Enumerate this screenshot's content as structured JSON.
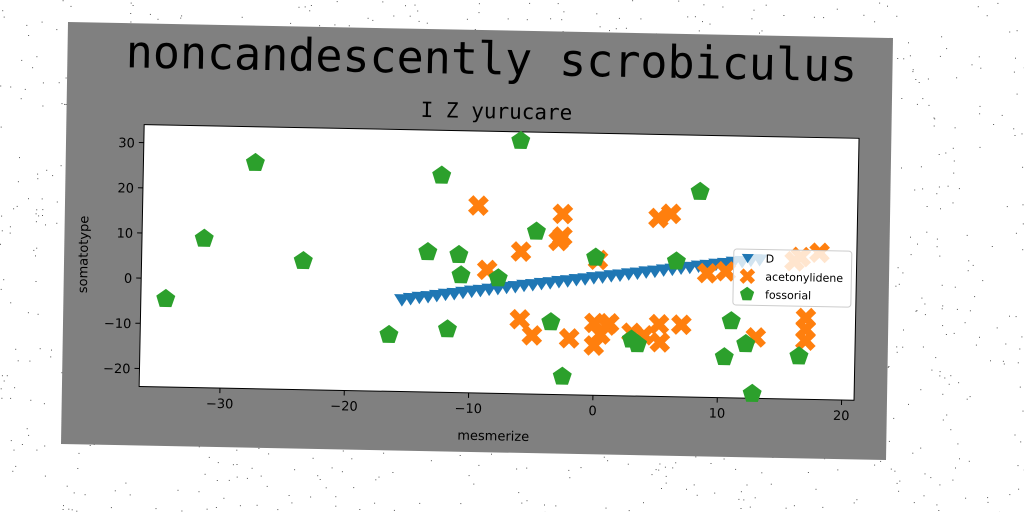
{
  "figure": {
    "title": "noncandescently scrobiculus",
    "subtitle": "I Z yurucare",
    "background_color": "#808080",
    "plot_background": "#ffffff"
  },
  "chart_data": {
    "type": "scatter",
    "title": "noncandescently scrobiculus",
    "subtitle": "I Z yurucare",
    "xlabel": "mesmerize",
    "ylabel": "somatotype",
    "xlim": [
      -36.5,
      21
    ],
    "ylim": [
      -24,
      34
    ],
    "xticks": [
      -30,
      -20,
      -10,
      0,
      10,
      20
    ],
    "yticks": [
      -20,
      -10,
      0,
      10,
      20,
      30
    ],
    "xtick_labels": [
      "−30",
      "−20",
      "−10",
      "0",
      "10",
      "20"
    ],
    "ytick_labels": [
      "−20",
      "−10",
      "0",
      "10",
      "20",
      "30"
    ],
    "grid": false,
    "legend_position": "center-right",
    "series": [
      {
        "name": "D",
        "marker": "triangle-down",
        "color": "#1f77b4",
        "points": [
          [
            -15.5,
            -3.7
          ],
          [
            -14.8,
            -3.4
          ],
          [
            -14.1,
            -3.1
          ],
          [
            -13.4,
            -2.9
          ],
          [
            -12.7,
            -2.6
          ],
          [
            -12.0,
            -2.3
          ],
          [
            -11.3,
            -2.1
          ],
          [
            -10.6,
            -1.8
          ],
          [
            -9.9,
            -1.5
          ],
          [
            -9.2,
            -1.3
          ],
          [
            -8.5,
            -1.0
          ],
          [
            -7.8,
            -0.8
          ],
          [
            -7.1,
            -0.5
          ],
          [
            -6.4,
            -0.3
          ],
          [
            -5.7,
            0.0
          ],
          [
            -5.0,
            0.2
          ],
          [
            -4.3,
            0.5
          ],
          [
            -3.6,
            0.7
          ],
          [
            -2.9,
            1.0
          ],
          [
            -2.2,
            1.2
          ],
          [
            -1.5,
            1.5
          ],
          [
            -0.8,
            1.7
          ],
          [
            -0.1,
            2.0
          ],
          [
            0.6,
            2.2
          ],
          [
            1.3,
            2.5
          ],
          [
            2.0,
            2.7
          ],
          [
            2.7,
            3.0
          ],
          [
            3.4,
            3.2
          ],
          [
            4.1,
            3.5
          ],
          [
            4.8,
            3.7
          ],
          [
            5.5,
            4.0
          ],
          [
            6.2,
            4.2
          ],
          [
            6.9,
            4.5
          ],
          [
            7.6,
            4.7
          ],
          [
            8.3,
            5.0
          ],
          [
            9.0,
            5.2
          ],
          [
            9.7,
            5.5
          ],
          [
            10.4,
            5.7
          ],
          [
            11.1,
            6.0
          ],
          [
            11.8,
            6.2
          ],
          [
            12.5,
            6.5
          ],
          [
            13.2,
            6.7
          ]
        ]
      },
      {
        "name": "acetonylidene",
        "marker": "x-filled",
        "color": "#ff7f0e",
        "points": [
          [
            -9.5,
            17.5
          ],
          [
            -8.7,
            3.3
          ],
          [
            -6.0,
            7.5
          ],
          [
            -6.0,
            -7.5
          ],
          [
            -5.0,
            -11.0
          ],
          [
            -3.0,
            10.0
          ],
          [
            -2.7,
            16.0
          ],
          [
            -2.7,
            11.0
          ],
          [
            -2.0,
            -11.5
          ],
          [
            0.0,
            -8.0
          ],
          [
            0.2,
            6.0
          ],
          [
            0.0,
            -13.0
          ],
          [
            0.5,
            -10.5
          ],
          [
            1.0,
            -8.5
          ],
          [
            1.2,
            -8.0
          ],
          [
            3.0,
            -10.0
          ],
          [
            4.0,
            -10.5
          ],
          [
            5.2,
            -8.0
          ],
          [
            5.0,
            15.5
          ],
          [
            5.3,
            -12.0
          ],
          [
            6.0,
            16.5
          ],
          [
            7.0,
            -8.0
          ],
          [
            9.0,
            3.5
          ],
          [
            10.5,
            4.0
          ],
          [
            13.0,
            -10.5
          ],
          [
            16.0,
            6.5
          ],
          [
            16.5,
            7.5
          ],
          [
            17.0,
            -6.0
          ],
          [
            17.0,
            -8.5
          ],
          [
            17.0,
            -11.0
          ],
          [
            18.0,
            8.5
          ]
        ]
      },
      {
        "name": "fossorial",
        "marker": "pentagon",
        "color": "#2ca02c",
        "points": [
          [
            -34.5,
            -4.5
          ],
          [
            -31.5,
            9.0
          ],
          [
            -27.5,
            26.0
          ],
          [
            -23.5,
            4.5
          ],
          [
            -16.5,
            -11.5
          ],
          [
            -13.5,
            7.0
          ],
          [
            -12.5,
            24.0
          ],
          [
            -11.8,
            -10.0
          ],
          [
            -11.0,
            6.5
          ],
          [
            -10.8,
            2.0
          ],
          [
            -7.8,
            1.5
          ],
          [
            -6.2,
            32.0
          ],
          [
            -4.8,
            12.0
          ],
          [
            -3.5,
            -8.0
          ],
          [
            -2.5,
            -20.0
          ],
          [
            0.0,
            6.5
          ],
          [
            3.0,
            -11.5
          ],
          [
            3.5,
            -12.5
          ],
          [
            6.5,
            6.0
          ],
          [
            8.3,
            21.5
          ],
          [
            10.5,
            -15.0
          ],
          [
            11.0,
            -7.0
          ],
          [
            12.2,
            -12.0
          ],
          [
            12.8,
            -23.0
          ],
          [
            16.5,
            -14.5
          ]
        ]
      }
    ]
  }
}
